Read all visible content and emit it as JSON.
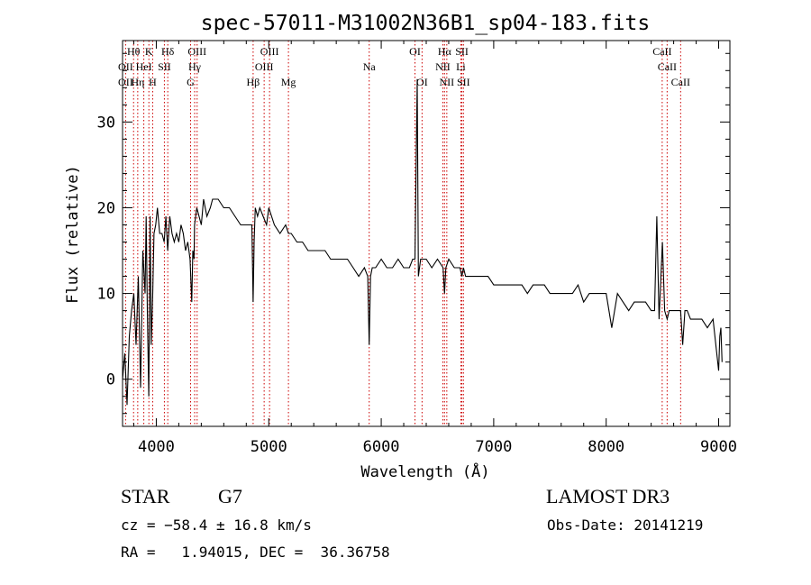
{
  "chart_data": {
    "type": "line",
    "title": "spec-57011-M31002N36B1_sp04-183.fits",
    "xlabel": "Wavelength (Å)",
    "ylabel": "Flux (relative)",
    "xlim": [
      3700,
      9100
    ],
    "ylim": [
      -5.5,
      39.5
    ],
    "xticks": [
      4000,
      5000,
      6000,
      7000,
      8000,
      9000
    ],
    "yticks": [
      0,
      10,
      20,
      30
    ],
    "grid": false,
    "series": [
      {
        "x": [
          3700,
          3720,
          3740,
          3760,
          3780,
          3800,
          3820,
          3840,
          3860,
          3880,
          3900,
          3910,
          3920,
          3933,
          3945,
          3955,
          3968,
          3980,
          3995,
          4010,
          4030,
          4050,
          4070,
          4085,
          4101,
          4120,
          4140,
          4160,
          4180,
          4200,
          4220,
          4240,
          4260,
          4280,
          4300,
          4315,
          4325,
          4335,
          4340,
          4360,
          4380,
          4400,
          4420,
          4450,
          4480,
          4500,
          4550,
          4600,
          4650,
          4700,
          4750,
          4800,
          4830,
          4850,
          4861,
          4870,
          4880,
          4900,
          4920,
          4950,
          4980,
          5000,
          5050,
          5100,
          5150,
          5175,
          5200,
          5250,
          5300,
          5350,
          5400,
          5450,
          5500,
          5550,
          5600,
          5650,
          5700,
          5750,
          5800,
          5850,
          5880,
          5893,
          5905,
          5920,
          5950,
          6000,
          6050,
          6100,
          6150,
          6200,
          6250,
          6280,
          6300,
          6320,
          6330,
          6350,
          6400,
          6450,
          6500,
          6550,
          6563,
          6575,
          6600,
          6650,
          6700,
          6717,
          6731,
          6750,
          6800,
          6850,
          6900,
          6950,
          7000,
          7050,
          7100,
          7150,
          7200,
          7250,
          7300,
          7350,
          7400,
          7450,
          7500,
          7550,
          7600,
          7650,
          7700,
          7750,
          7800,
          7850,
          7900,
          7950,
          8000,
          8050,
          8100,
          8150,
          8200,
          8250,
          8300,
          8350,
          8400,
          8430,
          8450,
          8470,
          8500,
          8520,
          8542,
          8560,
          8600,
          8640,
          8662,
          8680,
          8700,
          8720,
          8750,
          8800,
          8850,
          8900,
          8950,
          9000,
          9010,
          9020,
          9030
        ],
        "values": [
          0,
          3,
          -3,
          5,
          8,
          10,
          4,
          12,
          -1,
          15,
          10,
          19,
          8,
          -2,
          19,
          4,
          10,
          17,
          18,
          20,
          17,
          17,
          16,
          19,
          15,
          19,
          17,
          16,
          17,
          16,
          18,
          17,
          15,
          16,
          14,
          9,
          15,
          14,
          18,
          20,
          19,
          18,
          21,
          19,
          20,
          21,
          21,
          20,
          20,
          19,
          18,
          18,
          18,
          18,
          9,
          16,
          20,
          19,
          20,
          19,
          18,
          20,
          18,
          17,
          18,
          17,
          17,
          16,
          16,
          15,
          15,
          15,
          15,
          14,
          14,
          14,
          14,
          13,
          12,
          13,
          12,
          4,
          12,
          13,
          13,
          14,
          13,
          13,
          14,
          13,
          13,
          14,
          14,
          35,
          12,
          14,
          14,
          13,
          14,
          13,
          10,
          13,
          14,
          13,
          13,
          12,
          13,
          12,
          12,
          12,
          12,
          12,
          11,
          11,
          11,
          11,
          11,
          11,
          10,
          11,
          11,
          11,
          10,
          10,
          10,
          10,
          10,
          11,
          9,
          10,
          10,
          10,
          10,
          6,
          10,
          9,
          8,
          9,
          9,
          9,
          8,
          8,
          19,
          7,
          16,
          8,
          7,
          8,
          8,
          8,
          8,
          4,
          8,
          8,
          7,
          7,
          7,
          6,
          7,
          1,
          5,
          6,
          2
        ]
      }
    ],
    "line_labels": [
      {
        "name": "OII",
        "wl": 3727,
        "row": 1
      },
      {
        "name": "OII",
        "wl": 3727,
        "row": 2
      },
      {
        "name": "Hθ",
        "wl": 3798,
        "row": 0
      },
      {
        "name": "Hη",
        "wl": 3835,
        "row": 2
      },
      {
        "name": "HeI",
        "wl": 3889,
        "row": 1
      },
      {
        "name": "K",
        "wl": 3934,
        "row": 0
      },
      {
        "name": "H",
        "wl": 3968,
        "row": 2
      },
      {
        "name": "SII",
        "wl": 4072,
        "row": 1
      },
      {
        "name": "Hδ",
        "wl": 4102,
        "row": 0
      },
      {
        "name": "OIII",
        "wl": 4363,
        "row": 0
      },
      {
        "name": "Hγ",
        "wl": 4341,
        "row": 1
      },
      {
        "name": "G",
        "wl": 4305,
        "row": 2
      },
      {
        "name": "Hβ",
        "wl": 4861,
        "row": 2
      },
      {
        "name": "OIII",
        "wl": 5007,
        "row": 0
      },
      {
        "name": "OIII",
        "wl": 4959,
        "row": 1
      },
      {
        "name": "Mg",
        "wl": 5175,
        "row": 2
      },
      {
        "name": "Na",
        "wl": 5893,
        "row": 1
      },
      {
        "name": "OI",
        "wl": 6300,
        "row": 0
      },
      {
        "name": "OI",
        "wl": 6363,
        "row": 2
      },
      {
        "name": "Hα",
        "wl": 6563,
        "row": 0
      },
      {
        "name": "NII",
        "wl": 6548,
        "row": 1
      },
      {
        "name": "NII",
        "wl": 6583,
        "row": 2
      },
      {
        "name": "SII",
        "wl": 6717,
        "row": 0
      },
      {
        "name": "Li",
        "wl": 6708,
        "row": 1
      },
      {
        "name": "SII",
        "wl": 6731,
        "row": 2
      },
      {
        "name": "CaII",
        "wl": 8498,
        "row": 0
      },
      {
        "name": "CaII",
        "wl": 8542,
        "row": 1
      },
      {
        "name": "CaII",
        "wl": 8662,
        "row": 2
      }
    ],
    "line_markers": [
      3727,
      3798,
      3835,
      3889,
      3934,
      3968,
      4072,
      4102,
      4305,
      4341,
      4363,
      4861,
      4959,
      5007,
      5175,
      5893,
      6300,
      6363,
      6548,
      6563,
      6583,
      6708,
      6717,
      6731,
      8498,
      8542,
      8662
    ],
    "marker_color": "#cc0000"
  },
  "info": {
    "class": "STAR",
    "subclass": "G7",
    "survey": "LAMOST DR3",
    "cz": "cz = −58.4 ± 16.8 km/s",
    "obs_date": "Obs-Date: 20141219",
    "coords": "RA =   1.94015, DEC =  36.36758"
  }
}
